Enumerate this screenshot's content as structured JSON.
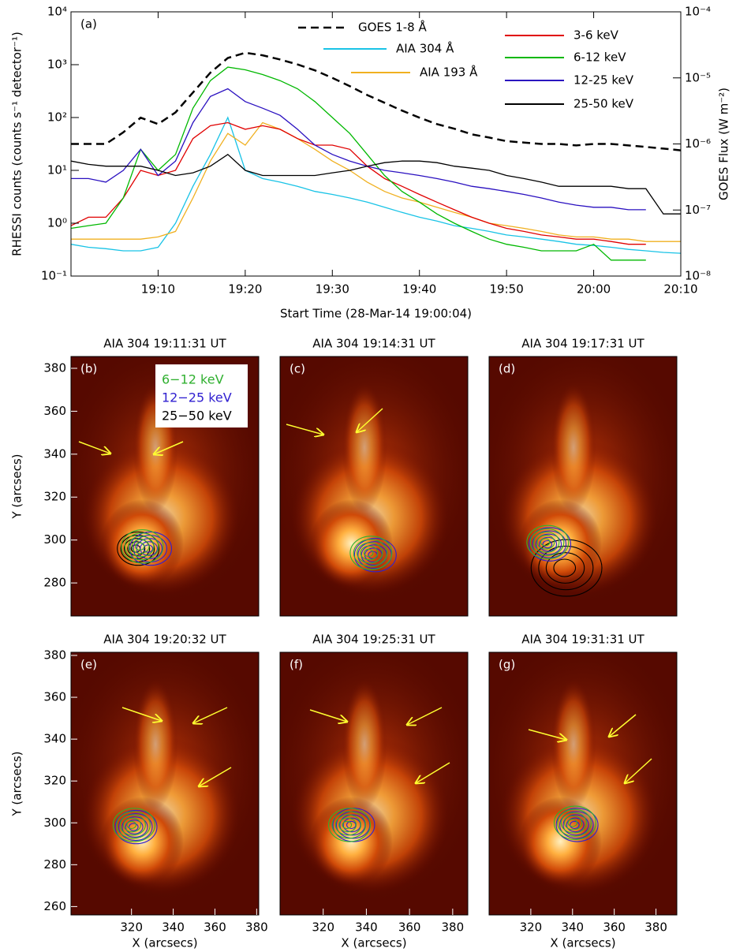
{
  "chart_data": [
    {
      "type": "line",
      "label": "(a)",
      "xlabel": "Start Time (28-Mar-14 19:00:04)",
      "ylabel": "RHESSI counts (counts s⁻¹ detector⁻¹)",
      "y2label": "GOES Flux (W m⁻²)",
      "log_y": true,
      "log_y2": true,
      "xlim": [
        0,
        70
      ],
      "xticks": [
        {
          "value": 10,
          "label": "19:10"
        },
        {
          "value": 20,
          "label": "19:20"
        },
        {
          "value": 30,
          "label": "19:30"
        },
        {
          "value": 40,
          "label": "19:40"
        },
        {
          "value": 50,
          "label": "19:50"
        },
        {
          "value": 60,
          "label": "20:00"
        },
        {
          "value": 70,
          "label": "20:10"
        }
      ],
      "ylim": [
        0.1,
        10000
      ],
      "yticks": [
        {
          "value": 0.1,
          "label": "10⁻¹"
        },
        {
          "value": 1,
          "label": "10⁰"
        },
        {
          "value": 10,
          "label": "10¹"
        },
        {
          "value": 100,
          "label": "10²"
        },
        {
          "value": 1000,
          "label": "10³"
        },
        {
          "value": 10000,
          "label": "10⁴"
        }
      ],
      "y2lim": [
        1e-08,
        0.0001
      ],
      "y2ticks": [
        {
          "value": 1e-08,
          "label": "10⁻⁸"
        },
        {
          "value": 1e-07,
          "label": "10⁻⁷"
        },
        {
          "value": 1e-06,
          "label": "10⁻⁶"
        },
        {
          "value": 1e-05,
          "label": "10⁻⁵"
        },
        {
          "value": 0.0001,
          "label": "10⁻⁴"
        }
      ],
      "x": [
        0,
        2,
        4,
        6,
        8,
        10,
        12,
        14,
        16,
        18,
        20,
        22,
        24,
        26,
        28,
        30,
        32,
        34,
        36,
        38,
        40,
        42,
        44,
        46,
        48,
        50,
        52,
        54,
        56,
        58,
        60,
        62,
        64,
        66,
        68,
        70
      ],
      "series": [
        {
          "name": "GOES 1-8 Å",
          "color": "#000000",
          "dashed": true,
          "axis": "y2",
          "values": [
            1e-06,
            1e-06,
            1e-06,
            1.5e-06,
            2.5e-06,
            2e-06,
            3e-06,
            6e-06,
            1.2e-05,
            2e-05,
            2.4e-05,
            2.2e-05,
            1.9e-05,
            1.6e-05,
            1.3e-05,
            1e-05,
            7.5e-06,
            5.5e-06,
            4.2e-06,
            3.2e-06,
            2.5e-06,
            2e-06,
            1.7e-06,
            1.4e-06,
            1.25e-06,
            1.1e-06,
            1.05e-06,
            1e-06,
            1e-06,
            9.5e-07,
            1e-06,
            1e-06,
            9.5e-07,
            9e-07,
            8.5e-07,
            8e-07
          ]
        },
        {
          "name": "AIA 304 Å",
          "color": "#19c3e6",
          "values": [
            0.4,
            0.35,
            0.33,
            0.3,
            0.3,
            0.35,
            1.0,
            5,
            20,
            100,
            10,
            7,
            6,
            5,
            4,
            3.5,
            3,
            2.5,
            2,
            1.6,
            1.3,
            1.1,
            0.9,
            0.8,
            0.7,
            0.6,
            0.55,
            0.5,
            0.45,
            0.4,
            0.38,
            0.35,
            0.32,
            0.3,
            0.28,
            0.27
          ]
        },
        {
          "name": "AIA 193 Å",
          "color": "#f0b020",
          "values": [
            0.5,
            0.5,
            0.5,
            0.5,
            0.5,
            0.55,
            0.7,
            3,
            15,
            50,
            30,
            80,
            60,
            40,
            25,
            15,
            10,
            6,
            4,
            3,
            2.5,
            2,
            1.6,
            1.3,
            1.0,
            0.9,
            0.8,
            0.7,
            0.6,
            0.55,
            0.55,
            0.5,
            0.5,
            0.45,
            0.45,
            0.45
          ]
        },
        {
          "name": "3-6 keV",
          "color": "#e00000",
          "values": [
            0.9,
            1.3,
            1.3,
            3,
            10,
            8,
            10,
            40,
            70,
            80,
            60,
            70,
            60,
            40,
            30,
            30,
            25,
            12,
            7,
            5,
            3.5,
            2.5,
            1.8,
            1.3,
            1.0,
            0.8,
            0.7,
            0.6,
            0.55,
            0.5,
            0.5,
            0.45,
            0.4,
            0.4,
            null,
            null
          ]
        },
        {
          "name": "6-12 keV",
          "color": "#00b800",
          "values": [
            0.8,
            0.9,
            1.0,
            3,
            25,
            10,
            20,
            150,
            500,
            900,
            800,
            650,
            500,
            350,
            200,
            100,
            50,
            20,
            8,
            4,
            2.5,
            1.5,
            1,
            0.7,
            0.5,
            0.4,
            0.35,
            0.3,
            0.3,
            0.3,
            0.4,
            0.2,
            0.2,
            0.2,
            null,
            null
          ]
        },
        {
          "name": "12-25 keV",
          "color": "#2a10c0",
          "values": [
            7,
            7,
            6,
            10,
            25,
            8,
            15,
            80,
            250,
            350,
            200,
            150,
            110,
            60,
            30,
            20,
            15,
            12,
            10,
            9,
            8,
            7,
            6,
            5,
            4.5,
            4,
            3.5,
            3,
            2.5,
            2.2,
            2,
            2,
            1.8,
            1.8,
            null,
            null
          ]
        },
        {
          "name": "25-50 keV",
          "color": "#000000",
          "values": [
            15,
            13,
            12,
            12,
            12,
            10,
            8,
            9,
            12,
            20,
            10,
            8,
            8,
            8,
            8,
            9,
            10,
            12,
            14,
            15,
            15,
            14,
            12,
            11,
            10,
            8,
            7,
            6,
            5,
            5,
            5,
            5,
            4.5,
            4.5,
            1.5,
            1.5
          ]
        }
      ]
    },
    {
      "type": "image",
      "title": "AIA 304 19:11:31 UT",
      "label": "(b)",
      "xlim": [
        291,
        381
      ],
      "ylim": [
        264.6,
        385.5
      ],
      "yticks": [
        280,
        300,
        320,
        340,
        360,
        380
      ],
      "ylabel": "Y (arcsecs)",
      "legend": [
        {
          "name": "6−12 keV",
          "color": "#30b030"
        },
        {
          "name": "12−25 keV",
          "color": "#3020d0"
        },
        {
          "name": "25−50 keV",
          "color": "#000000"
        }
      ],
      "contours": [
        {
          "color": "#000000",
          "x": 322,
          "y": 296
        },
        {
          "color": "#3020d0",
          "x": 328,
          "y": 296
        },
        {
          "color": "#30b030",
          "x": 324,
          "y": 297
        }
      ]
    },
    {
      "type": "image",
      "title": "AIA 304 19:14:31 UT",
      "label": "(c)",
      "xlim": [
        300,
        387
      ],
      "ylim": [
        264.6,
        385.5
      ],
      "contours": [
        {
          "color": "#3020d0",
          "x": 343,
          "y": 293
        },
        {
          "color": "#30b030",
          "x": 341,
          "y": 294
        }
      ]
    },
    {
      "type": "image",
      "title": "AIA 304 19:17:31 UT",
      "label": "(d)",
      "xlim": [
        300,
        387
      ],
      "ylim": [
        264.6,
        385.5
      ],
      "contours": [
        {
          "color": "#000000",
          "x": 335,
          "y": 287
        },
        {
          "color": "#3020d0",
          "x": 327,
          "y": 298
        },
        {
          "color": "#30b030",
          "x": 326,
          "y": 299
        }
      ]
    },
    {
      "type": "image",
      "title": "AIA 304 19:20:32 UT",
      "label": "(e)",
      "xlim": [
        291,
        381
      ],
      "ylim": [
        256,
        381.5
      ],
      "yticks": [
        260,
        280,
        300,
        320,
        340,
        360,
        380
      ],
      "ylabel": "Y (arcsecs)",
      "xticks": [
        320,
        340,
        360,
        380
      ],
      "xlabel": "X (arcsecs)",
      "contours": [
        {
          "color": "#3020d0",
          "x": 321,
          "y": 298
        },
        {
          "color": "#30b030",
          "x": 320,
          "y": 299
        }
      ]
    },
    {
      "type": "image",
      "title": "AIA 304 19:25:31 UT",
      "label": "(f)",
      "xlim": [
        300,
        387
      ],
      "ylim": [
        256,
        381.5
      ],
      "xticks": [
        320,
        340,
        360,
        380
      ],
      "xlabel": "X (arcsecs)",
      "contours": [
        {
          "color": "#3020d0",
          "x": 333,
          "y": 299
        },
        {
          "color": "#30b030",
          "x": 331,
          "y": 299
        }
      ]
    },
    {
      "type": "image",
      "title": "AIA 304 19:31:31 UT",
      "label": "(g)",
      "xlim": [
        300,
        390
      ],
      "ylim": [
        256,
        381.5
      ],
      "xticks": [
        320,
        340,
        360,
        380
      ],
      "xlabel": "X (arcsecs)",
      "contours": [
        {
          "color": "#3020d0",
          "x": 341,
          "y": 299
        },
        {
          "color": "#30b030",
          "x": 340,
          "y": 300
        }
      ]
    }
  ]
}
